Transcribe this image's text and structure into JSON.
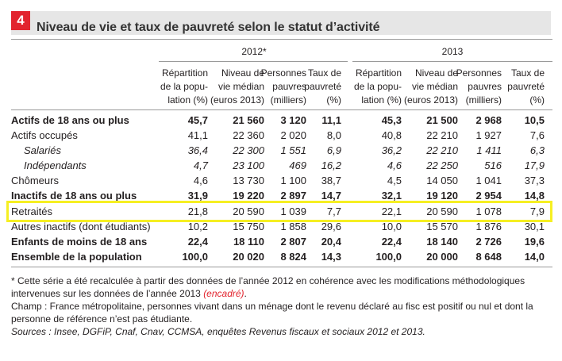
{
  "figure": {
    "number": "4",
    "title": "Niveau de vie et taux de pauvreté selon le statut d’activité"
  },
  "years": [
    "2012*",
    "2013"
  ],
  "columns": [
    [
      "Répartition",
      "de la popu-",
      "lation (%)"
    ],
    [
      "Niveau de",
      "vie médian",
      "(euros 2013)"
    ],
    [
      "Personnes",
      "pauvres",
      "(milliers)"
    ],
    [
      "Taux de",
      "pauvreté",
      "(%)"
    ],
    [
      "Répartition",
      "de la popu-",
      "lation (%)"
    ],
    [
      "Niveau de",
      "vie médian",
      "(euros 2013)"
    ],
    [
      "Personnes",
      "pauvres",
      "(milliers)"
    ],
    [
      "Taux de",
      "pauvreté",
      "(%)"
    ]
  ],
  "rows": [
    {
      "label": "Actifs de 18 ans ou plus",
      "style": "bold",
      "values": [
        "45,7",
        "21 560",
        "3 120",
        "11,1",
        "45,3",
        "21 500",
        "2 968",
        "10,5"
      ]
    },
    {
      "label": "Actifs occupés",
      "style": "normal",
      "values": [
        "41,1",
        "22 360",
        "2 020",
        "8,0",
        "40,8",
        "22 210",
        "1 927",
        "7,6"
      ]
    },
    {
      "label": "Salariés",
      "style": "italic",
      "values": [
        "36,4",
        "22 300",
        "1 551",
        "6,9",
        "36,2",
        "22 210",
        "1 411",
        "6,3"
      ]
    },
    {
      "label": "Indépendants",
      "style": "italic",
      "values": [
        "4,7",
        "23 100",
        "469",
        "16,2",
        "4,6",
        "22 250",
        "516",
        "17,9"
      ]
    },
    {
      "label": "Chômeurs",
      "style": "normal",
      "values": [
        "4,6",
        "13 730",
        "1 100",
        "38,7",
        "4,5",
        "14 050",
        "1 041",
        "37,3"
      ]
    },
    {
      "label": "Inactifs de 18 ans ou plus",
      "style": "bold",
      "values": [
        "31,9",
        "19 220",
        "2 897",
        "14,7",
        "32,1",
        "19 120",
        "2 954",
        "14,8"
      ]
    },
    {
      "label": "Retraités",
      "style": "normal",
      "values": [
        "21,8",
        "20 590",
        "1 039",
        "7,7",
        "22,1",
        "20 590",
        "1 078",
        "7,9"
      ]
    },
    {
      "label": "Autres inactifs (dont étudiants)",
      "style": "normal",
      "values": [
        "10,2",
        "15 750",
        "1 858",
        "29,6",
        "10,0",
        "15 570",
        "1 876",
        "30,1"
      ]
    },
    {
      "label": "Enfants de moins de 18 ans",
      "style": "bold",
      "values": [
        "22,4",
        "18 110",
        "2 807",
        "20,4",
        "22,4",
        "18 140",
        "2 726",
        "19,6"
      ]
    },
    {
      "label": "Ensemble de la population",
      "style": "bold",
      "values": [
        "100,0",
        "20 020",
        "8 824",
        "14,3",
        "100,0",
        "20 000",
        "8 648",
        "14,0"
      ]
    }
  ],
  "notes": {
    "asterisk_before": "* Cette série a été recalculée à partir des données de l’année 2012 en cohérence avec les modifications méthodologiques intervenues sur les données de l’année 2013 ",
    "asterisk_link": "(encadré)",
    "asterisk_after": ".",
    "champ": "Champ : France métropolitaine, personnes vivant dans un ménage dont le revenu déclaré au fisc est positif ou nul et dont la personne de référence n’est pas étudiante.",
    "sources": "Sources : Insee, DGFiP, Cnaf, Cnav, CCMSA, enquêtes Revenus fiscaux et sociaux 2012 et 2013."
  }
}
